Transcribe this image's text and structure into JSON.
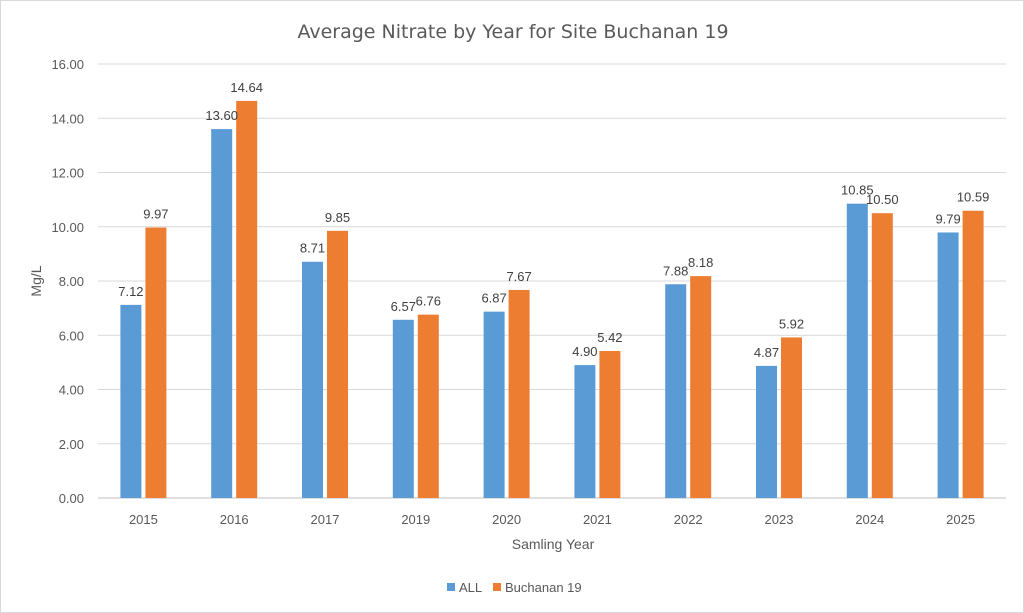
{
  "chart_data": {
    "type": "bar",
    "title": "Average Nitrate by Year for Site Buchanan 19",
    "xlabel": "Samling Year",
    "ylabel": "Mg/L",
    "ylim": [
      0,
      16
    ],
    "ytick_step": 2,
    "ytick_labels": [
      "0.00",
      "2.00",
      "4.00",
      "6.00",
      "8.00",
      "10.00",
      "12.00",
      "14.00",
      "16.00"
    ],
    "categories": [
      "2015",
      "2016",
      "2017",
      "2019",
      "2020",
      "2021",
      "2022",
      "2023",
      "2024",
      "2025"
    ],
    "series": [
      {
        "name": "ALL",
        "color": "#5b9bd5",
        "values": [
          7.12,
          13.6,
          8.71,
          6.57,
          6.87,
          4.9,
          7.88,
          4.87,
          10.85,
          9.79
        ],
        "labels": [
          "7.12",
          "13.60",
          "8.71",
          "6.57",
          "6.87",
          "4.90",
          "7.88",
          "4.87",
          "10.85",
          "9.79"
        ]
      },
      {
        "name": "Buchanan 19",
        "color": "#ed7d31",
        "values": [
          9.97,
          14.64,
          9.85,
          6.76,
          7.67,
          5.42,
          8.18,
          5.92,
          10.5,
          10.59
        ],
        "labels": [
          "9.97",
          "14.64",
          "9.85",
          "6.76",
          "7.67",
          "5.42",
          "8.18",
          "5.92",
          "10.50",
          "10.59"
        ]
      }
    ],
    "grid": true,
    "legend": "bottom"
  }
}
